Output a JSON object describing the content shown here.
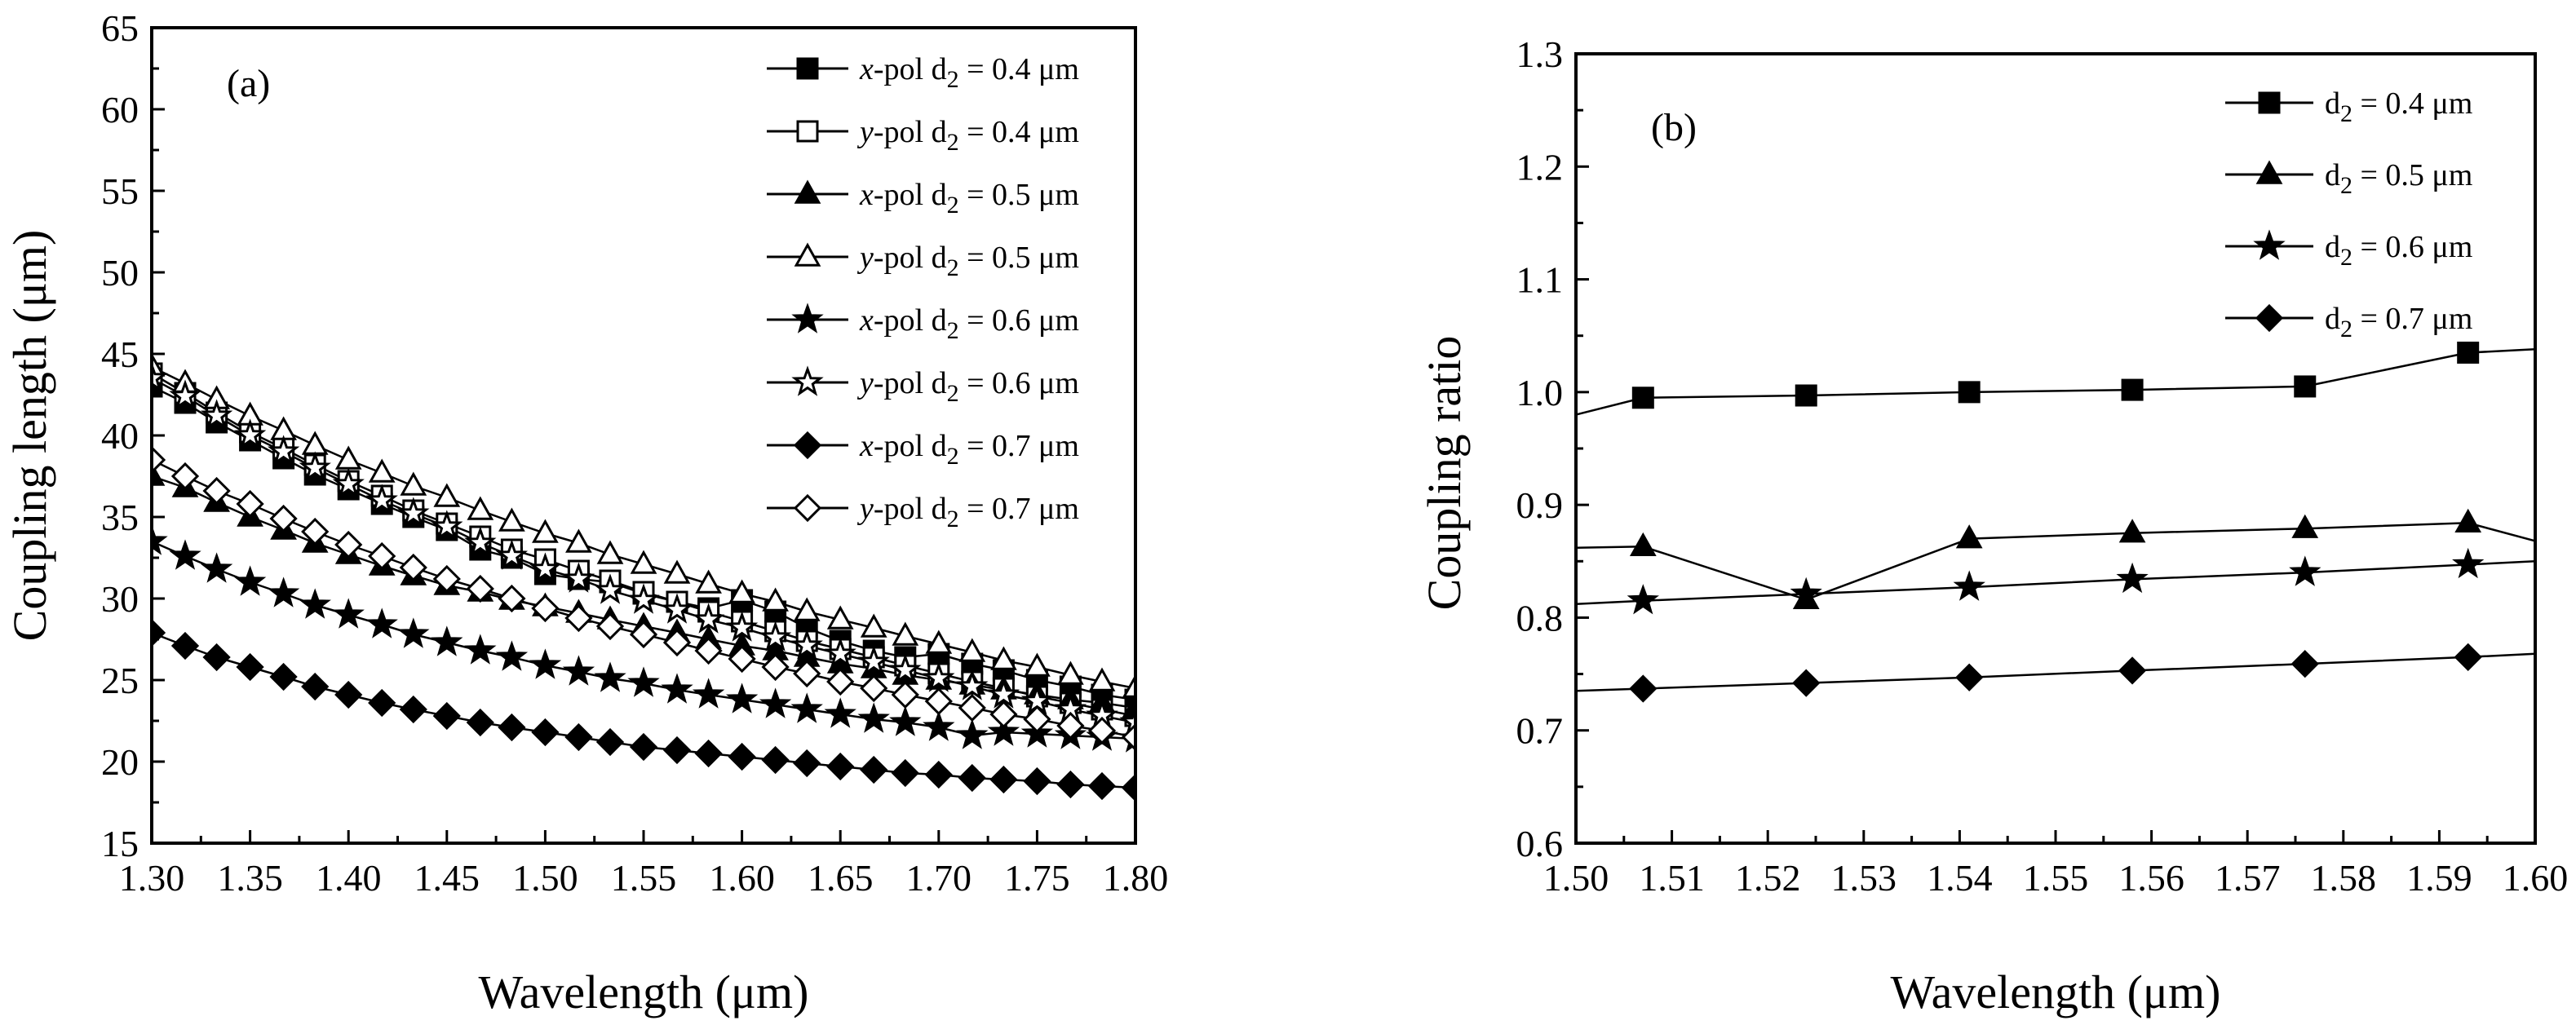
{
  "chart_data": [
    {
      "type": "line",
      "panel_label": "(a)",
      "xlabel": "Wavelength (μm)",
      "ylabel": "Coupling length (μm)",
      "xlim": [
        1.3,
        1.8
      ],
      "ylim": [
        15,
        65
      ],
      "xticks": [
        "1.30",
        "1.35",
        "1.40",
        "1.45",
        "1.50",
        "1.55",
        "1.60",
        "1.65",
        "1.70",
        "1.75",
        "1.80"
      ],
      "yticks": [
        "15",
        "20",
        "25",
        "30",
        "35",
        "40",
        "45",
        "50",
        "55",
        "60",
        "65"
      ],
      "legend_position": "top-right",
      "x": [
        1.3,
        1.317,
        1.333,
        1.35,
        1.367,
        1.383,
        1.4,
        1.417,
        1.433,
        1.45,
        1.467,
        1.483,
        1.5,
        1.517,
        1.533,
        1.55,
        1.567,
        1.583,
        1.6,
        1.617,
        1.633,
        1.65,
        1.667,
        1.683,
        1.7,
        1.717,
        1.733,
        1.75,
        1.767,
        1.783,
        1.8
      ],
      "series": [
        {
          "name": "x-pol d2 = 0.4 μm",
          "pol": "x",
          "pol_rest": "-pol",
          "d_main": "d",
          "d_sub": "2",
          "d_value": "= 0.4 μm",
          "marker": "square",
          "fill": "filled",
          "values": [
            43.0,
            42.0,
            40.8,
            39.7,
            38.6,
            37.6,
            36.7,
            35.8,
            35.0,
            34.2,
            33.0,
            32.5,
            31.5,
            31.2,
            31.0,
            30.3,
            29.8,
            29.4,
            29.9,
            29.2,
            28.2,
            27.4,
            26.8,
            26.4,
            26.6,
            26.0,
            25.6,
            25.0,
            24.6,
            24.1,
            23.8
          ]
        },
        {
          "name": "y-pol d2 = 0.4 μm",
          "pol": "y",
          "pol_rest": "-pol",
          "d_main": "d",
          "d_sub": "2",
          "d_value": "= 0.4 μm",
          "marker": "square",
          "fill": "open",
          "values": [
            43.8,
            42.6,
            41.4,
            40.2,
            39.2,
            38.2,
            37.2,
            36.3,
            35.4,
            34.6,
            33.8,
            33.0,
            32.4,
            31.7,
            31.1,
            30.4,
            29.8,
            29.2,
            28.6,
            28.0,
            27.4,
            26.9,
            26.4,
            25.9,
            25.4,
            24.9,
            24.5,
            24.0,
            23.6,
            23.2,
            22.8
          ]
        },
        {
          "name": "x-pol d2 = 0.5 μm",
          "pol": "x",
          "pol_rest": "-pol",
          "d_main": "d",
          "d_sub": "2",
          "d_value": "= 0.5 μm",
          "marker": "triangle",
          "fill": "filled",
          "values": [
            37.5,
            36.8,
            35.9,
            35.0,
            34.2,
            33.4,
            32.7,
            32.0,
            31.4,
            30.8,
            30.4,
            29.9,
            29.5,
            29.1,
            28.7,
            28.3,
            27.9,
            27.5,
            27.1,
            26.8,
            26.4,
            26.0,
            25.7,
            25.3,
            25.0,
            24.7,
            24.4,
            24.1,
            23.8,
            23.6,
            23.3
          ]
        },
        {
          "name": "y-pol d2 = 0.5 μm",
          "pol": "y",
          "pol_rest": "-pol",
          "d_main": "d",
          "d_sub": "2",
          "d_value": "= 0.5 μm",
          "marker": "triangle",
          "fill": "open",
          "values": [
            44.2,
            43.2,
            42.2,
            41.2,
            40.3,
            39.4,
            38.5,
            37.7,
            36.9,
            36.2,
            35.4,
            34.7,
            34.0,
            33.4,
            32.7,
            32.1,
            31.5,
            30.9,
            30.3,
            29.8,
            29.2,
            28.7,
            28.2,
            27.7,
            27.2,
            26.7,
            26.2,
            25.8,
            25.3,
            24.9,
            24.5
          ]
        },
        {
          "name": "x-pol d2 = 0.6 μm",
          "pol": "x",
          "pol_rest": "-pol",
          "d_main": "d",
          "d_sub": "2",
          "d_value": "= 0.6 μm",
          "marker": "star",
          "fill": "filled",
          "values": [
            33.5,
            32.6,
            31.8,
            31.0,
            30.3,
            29.6,
            29.0,
            28.4,
            27.8,
            27.3,
            26.8,
            26.4,
            25.9,
            25.5,
            25.1,
            24.8,
            24.4,
            24.1,
            23.8,
            23.5,
            23.2,
            22.9,
            22.6,
            22.4,
            22.1,
            21.6,
            21.8,
            21.7,
            21.6,
            21.5,
            21.4
          ]
        },
        {
          "name": "y-pol d2 = 0.6 μm",
          "pol": "y",
          "pol_rest": "-pol",
          "d_main": "d",
          "d_sub": "2",
          "d_value": "= 0.6 μm",
          "marker": "star",
          "fill": "open",
          "values": [
            43.5,
            42.4,
            41.2,
            40.0,
            39.0,
            38.0,
            37.0,
            36.0,
            35.2,
            34.4,
            33.4,
            32.6,
            31.8,
            31.2,
            30.5,
            29.9,
            29.3,
            28.7,
            28.2,
            27.6,
            27.1,
            26.6,
            26.1,
            25.6,
            25.1,
            24.6,
            24.1,
            23.7,
            23.2,
            22.8,
            22.4
          ]
        },
        {
          "name": "x-pol d2 = 0.7 μm",
          "pol": "x",
          "pol_rest": "-pol",
          "d_main": "d",
          "d_sub": "2",
          "d_value": "= 0.7 μm",
          "marker": "diamond",
          "fill": "filled",
          "values": [
            27.9,
            27.1,
            26.4,
            25.8,
            25.2,
            24.6,
            24.1,
            23.6,
            23.2,
            22.8,
            22.4,
            22.1,
            21.8,
            21.5,
            21.2,
            20.9,
            20.7,
            20.5,
            20.3,
            20.1,
            19.9,
            19.7,
            19.5,
            19.3,
            19.2,
            19.0,
            18.9,
            18.8,
            18.6,
            18.5,
            18.4
          ]
        },
        {
          "name": "y-pol d2 = 0.7 μm",
          "pol": "y",
          "pol_rest": "-pol",
          "d_main": "d",
          "d_sub": "2",
          "d_value": "= 0.7 μm",
          "marker": "diamond",
          "fill": "open",
          "values": [
            38.5,
            37.5,
            36.6,
            35.8,
            34.9,
            34.1,
            33.3,
            32.6,
            31.9,
            31.2,
            30.6,
            30.0,
            29.4,
            28.8,
            28.3,
            27.8,
            27.3,
            26.8,
            26.3,
            25.8,
            25.4,
            24.9,
            24.5,
            24.1,
            23.7,
            23.3,
            22.9,
            22.6,
            22.2,
            21.9,
            21.5
          ]
        }
      ]
    },
    {
      "type": "line",
      "panel_label": "(b)",
      "xlabel": "Wavelength (μm)",
      "ylabel": "Coupling ratio",
      "xlim": [
        1.5,
        1.6
      ],
      "ylim": [
        0.6,
        1.3
      ],
      "xticks": [
        "1.50",
        "1.51",
        "1.52",
        "1.53",
        "1.54",
        "1.55",
        "1.56",
        "1.57",
        "1.58",
        "1.59",
        "1.60"
      ],
      "yticks": [
        "0.6",
        "0.7",
        "0.8",
        "0.9",
        "1.0",
        "1.1",
        "1.2",
        "1.3"
      ],
      "legend_position": "top-right",
      "series": [
        {
          "name": "d2= 0.4 μm",
          "d_main": "d",
          "d_sub": "2",
          "d_value": "= 0.4 μm",
          "marker": "square",
          "fill": "filled",
          "x": [
            1.5,
            1.507,
            1.524,
            1.541,
            1.558,
            1.576,
            1.593,
            1.6
          ],
          "values": [
            0.98,
            0.995,
            0.997,
            1.0,
            1.002,
            1.005,
            1.035,
            1.038
          ],
          "marker_x": [
            1.507,
            1.524,
            1.541,
            1.558,
            1.576,
            1.593
          ]
        },
        {
          "name": "d2= 0.5 μm",
          "d_main": "d",
          "d_sub": "2",
          "d_value": "= 0.5 μm",
          "marker": "triangle",
          "fill": "filled",
          "x": [
            1.5,
            1.507,
            1.524,
            1.541,
            1.558,
            1.576,
            1.593,
            1.6
          ],
          "values": [
            0.862,
            0.863,
            0.816,
            0.87,
            0.875,
            0.879,
            0.884,
            0.868
          ],
          "marker_x": [
            1.507,
            1.524,
            1.541,
            1.558,
            1.576,
            1.593
          ]
        },
        {
          "name": "d2= 0.6 μm",
          "d_main": "d",
          "d_sub": "2",
          "d_value": "= 0.6 μm",
          "marker": "star",
          "fill": "filled",
          "x": [
            1.5,
            1.507,
            1.524,
            1.541,
            1.558,
            1.576,
            1.593,
            1.6
          ],
          "values": [
            0.812,
            0.815,
            0.821,
            0.827,
            0.834,
            0.84,
            0.847,
            0.85
          ],
          "marker_x": [
            1.507,
            1.524,
            1.541,
            1.558,
            1.576,
            1.593
          ]
        },
        {
          "name": "d2= 0.7 μm",
          "d_main": "d",
          "d_sub": "2",
          "d_value": "= 0.7 μm",
          "marker": "diamond",
          "fill": "filled",
          "x": [
            1.5,
            1.507,
            1.524,
            1.541,
            1.558,
            1.576,
            1.593,
            1.6
          ],
          "values": [
            0.735,
            0.737,
            0.742,
            0.747,
            0.753,
            0.759,
            0.765,
            0.768
          ],
          "marker_x": [
            1.507,
            1.524,
            1.541,
            1.558,
            1.576,
            1.593
          ]
        }
      ]
    }
  ]
}
